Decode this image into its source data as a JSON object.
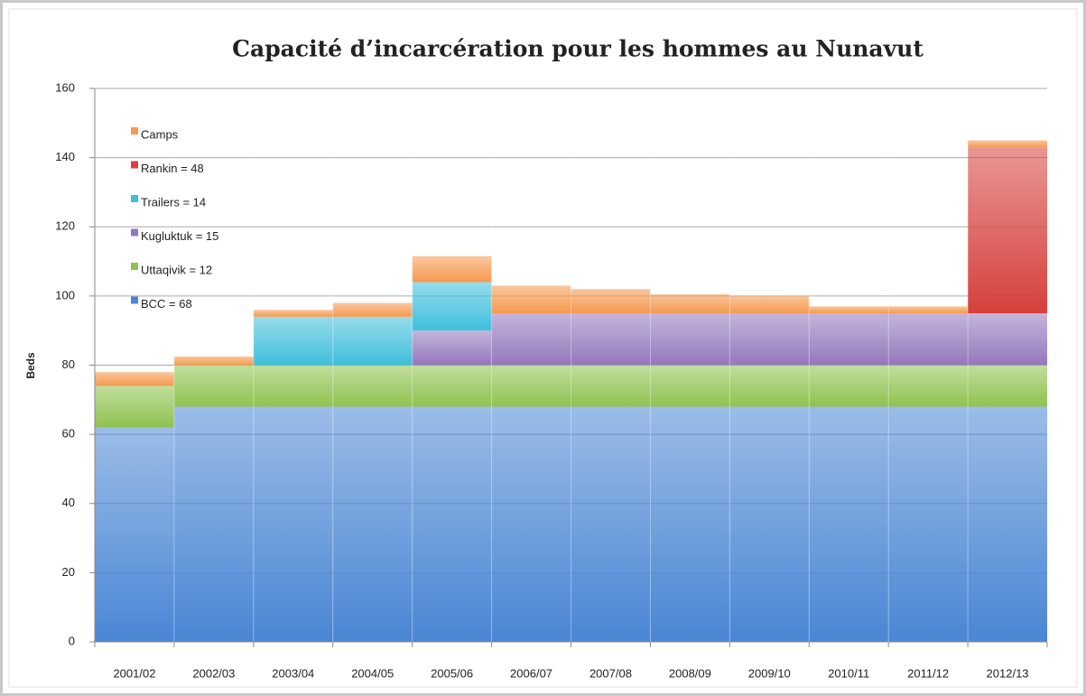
{
  "chart_data": {
    "type": "stacked_bar",
    "title": "Capacité d’incarcération pour les hommes au Nunavut",
    "ylabel": "Beds",
    "categories": [
      "2001/02",
      "2002/03",
      "2003/04",
      "2004/05",
      "2005/06",
      "2006/07",
      "2007/08",
      "2008/09",
      "2009/10",
      "2010/11",
      "2011/12",
      "2012/13"
    ],
    "series": [
      {
        "name": "BCC = 68",
        "color": "#4a86d4",
        "values": [
          62,
          68,
          68,
          68,
          68,
          68,
          68,
          68,
          68,
          68,
          68,
          68
        ]
      },
      {
        "name": "Uttaqivik = 12",
        "color": "#8fc24f",
        "values": [
          12,
          12,
          12,
          12,
          12,
          12,
          12,
          12,
          12,
          12,
          12,
          12
        ]
      },
      {
        "name": "Kugluktuk = 15",
        "color": "#9478bd",
        "values": [
          0,
          0,
          0,
          0,
          10,
          15,
          15,
          15,
          15,
          15,
          15,
          15
        ]
      },
      {
        "name": "Trailers = 14",
        "color": "#3fbfdc",
        "values": [
          0,
          0,
          14,
          14,
          14,
          0,
          0,
          0,
          0,
          0,
          0,
          0
        ]
      },
      {
        "name": "Rankin = 48",
        "color": "#d6403c",
        "values": [
          0,
          0,
          0,
          0,
          0,
          0,
          0,
          0,
          0,
          0,
          0,
          48
        ]
      },
      {
        "name": "Camps",
        "color": "#f5994e",
        "values": [
          4,
          2.5,
          2,
          4,
          7.5,
          8,
          7,
          5.5,
          5,
          2,
          2,
          2
        ]
      }
    ],
    "ylim": [
      0,
      160
    ],
    "yticks": [
      0,
      20,
      40,
      60,
      80,
      100,
      120,
      140,
      160
    ],
    "grid": true,
    "legend": "upper left"
  }
}
